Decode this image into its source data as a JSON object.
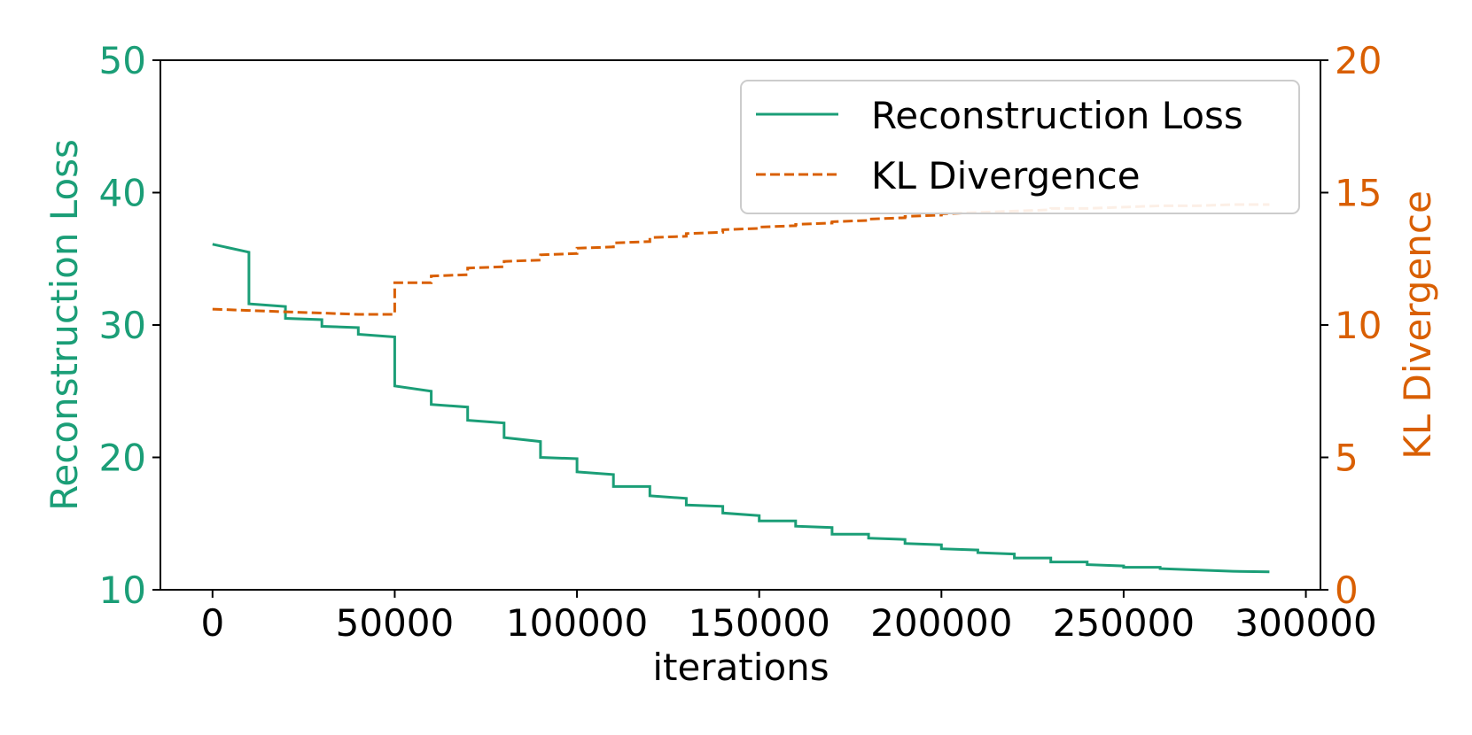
{
  "chart_data": {
    "type": "line",
    "xlabel": "iterations",
    "ylabel_left": "Reconstruction Loss",
    "ylabel_right": "KL Divergence",
    "xlim": [
      -14300,
      304000
    ],
    "ylim_left": [
      10,
      50
    ],
    "ylim_right": [
      0,
      20
    ],
    "x_ticks": [
      0,
      50000,
      100000,
      150000,
      200000,
      250000,
      300000
    ],
    "x_tick_labels": [
      "0",
      "50000",
      "100000",
      "150000",
      "200000",
      "250000",
      "300000"
    ],
    "y_left_ticks": [
      10,
      20,
      30,
      40,
      50
    ],
    "y_left_tick_labels": [
      "10",
      "20",
      "30",
      "40",
      "50"
    ],
    "y_right_ticks": [
      0,
      5,
      10,
      15,
      20
    ],
    "y_right_tick_labels": [
      "0",
      "5",
      "10",
      "15",
      "20"
    ],
    "legend_position": "top-right",
    "colors": {
      "reconstruction": "#1b9e77",
      "kl": "#d95f02",
      "axis": "#000000"
    },
    "series": [
      {
        "name": "Reconstruction Loss",
        "axis": "left",
        "style": "solid",
        "points": [
          [
            0,
            36.1
          ],
          [
            10000,
            35.5
          ],
          [
            10000,
            31.6
          ],
          [
            20000,
            31.4
          ],
          [
            20000,
            30.5
          ],
          [
            30000,
            30.4
          ],
          [
            30000,
            29.9
          ],
          [
            40000,
            29.8
          ],
          [
            40000,
            29.3
          ],
          [
            50000,
            29.1
          ],
          [
            50000,
            25.4
          ],
          [
            60000,
            25.0
          ],
          [
            60000,
            24.0
          ],
          [
            70000,
            23.8
          ],
          [
            70000,
            22.8
          ],
          [
            80000,
            22.6
          ],
          [
            80000,
            21.5
          ],
          [
            90000,
            21.2
          ],
          [
            90000,
            20.0
          ],
          [
            100000,
            19.9
          ],
          [
            100000,
            18.9
          ],
          [
            110000,
            18.7
          ],
          [
            110000,
            17.8
          ],
          [
            120000,
            17.8
          ],
          [
            120000,
            17.1
          ],
          [
            130000,
            16.9
          ],
          [
            130000,
            16.4
          ],
          [
            140000,
            16.3
          ],
          [
            140000,
            15.8
          ],
          [
            150000,
            15.6
          ],
          [
            150000,
            15.2
          ],
          [
            160000,
            15.2
          ],
          [
            160000,
            14.8
          ],
          [
            170000,
            14.7
          ],
          [
            170000,
            14.2
          ],
          [
            180000,
            14.2
          ],
          [
            180000,
            13.9
          ],
          [
            190000,
            13.8
          ],
          [
            190000,
            13.5
          ],
          [
            200000,
            13.4
          ],
          [
            200000,
            13.1
          ],
          [
            210000,
            13.0
          ],
          [
            210000,
            12.8
          ],
          [
            220000,
            12.7
          ],
          [
            220000,
            12.4
          ],
          [
            230000,
            12.4
          ],
          [
            230000,
            12.1
          ],
          [
            240000,
            12.1
          ],
          [
            240000,
            11.9
          ],
          [
            250000,
            11.8
          ],
          [
            250000,
            11.7
          ],
          [
            260000,
            11.7
          ],
          [
            260000,
            11.6
          ],
          [
            270000,
            11.5
          ],
          [
            270000,
            11.5
          ],
          [
            280000,
            11.4
          ],
          [
            290000,
            11.35
          ]
        ]
      },
      {
        "name": "KL Divergence",
        "axis": "right",
        "style": "dashed",
        "points": [
          [
            0,
            10.6
          ],
          [
            10000,
            10.55
          ],
          [
            20000,
            10.5
          ],
          [
            30000,
            10.45
          ],
          [
            40000,
            10.4
          ],
          [
            50000,
            10.4
          ],
          [
            50000,
            11.6
          ],
          [
            60000,
            11.6
          ],
          [
            60000,
            11.85
          ],
          [
            70000,
            11.9
          ],
          [
            70000,
            12.15
          ],
          [
            80000,
            12.2
          ],
          [
            80000,
            12.4
          ],
          [
            90000,
            12.45
          ],
          [
            90000,
            12.65
          ],
          [
            100000,
            12.7
          ],
          [
            100000,
            12.9
          ],
          [
            110000,
            12.95
          ],
          [
            110000,
            13.1
          ],
          [
            120000,
            13.15
          ],
          [
            120000,
            13.3
          ],
          [
            130000,
            13.35
          ],
          [
            130000,
            13.45
          ],
          [
            140000,
            13.5
          ],
          [
            140000,
            13.6
          ],
          [
            150000,
            13.65
          ],
          [
            150000,
            13.7
          ],
          [
            160000,
            13.75
          ],
          [
            160000,
            13.8
          ],
          [
            170000,
            13.85
          ],
          [
            170000,
            13.9
          ],
          [
            180000,
            13.95
          ],
          [
            180000,
            14.0
          ],
          [
            190000,
            14.05
          ],
          [
            190000,
            14.1
          ],
          [
            200000,
            14.15
          ],
          [
            200000,
            14.2
          ],
          [
            210000,
            14.25
          ],
          [
            220000,
            14.3
          ],
          [
            230000,
            14.35
          ],
          [
            230000,
            14.4
          ],
          [
            240000,
            14.4
          ],
          [
            250000,
            14.45
          ],
          [
            260000,
            14.5
          ],
          [
            270000,
            14.5
          ],
          [
            280000,
            14.55
          ],
          [
            290000,
            14.55
          ]
        ]
      }
    ]
  }
}
